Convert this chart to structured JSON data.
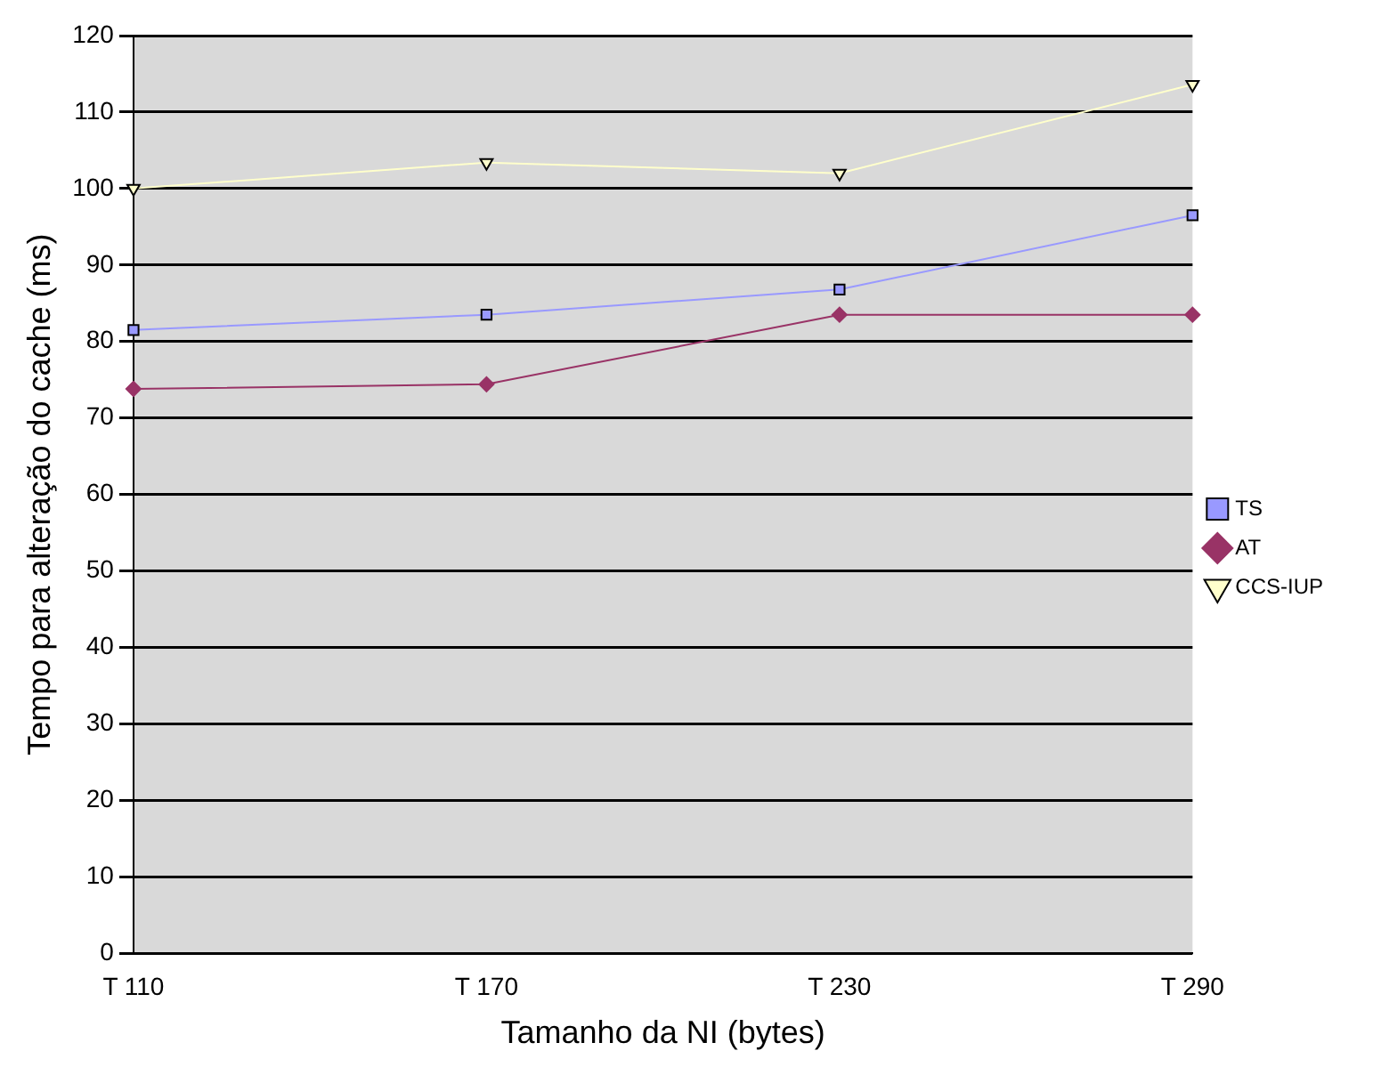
{
  "chart_data": {
    "type": "line",
    "xlabel": "Tamanho da NI (bytes)",
    "ylabel": "Tempo para alteração do cache (ms)",
    "categories": [
      "T 110",
      "T 170",
      "T 230",
      "T 290"
    ],
    "series": [
      {
        "name": "TS",
        "color": "#9999ff",
        "marker": "square",
        "values": [
          81.5,
          83.5,
          86.8,
          96.5
        ]
      },
      {
        "name": "AT",
        "color": "#993366",
        "marker": "diamond",
        "values": [
          73.8,
          74.4,
          83.5,
          83.5
        ]
      },
      {
        "name": "CCS-IUP",
        "color": "#ffffcc",
        "marker": "triangle",
        "values": [
          100,
          103.4,
          102,
          113.6
        ]
      }
    ],
    "ylim": [
      0,
      120
    ],
    "yticks": [
      0,
      10,
      20,
      30,
      40,
      50,
      60,
      70,
      80,
      90,
      100,
      110,
      120
    ],
    "grid": "y",
    "legend": "right"
  }
}
